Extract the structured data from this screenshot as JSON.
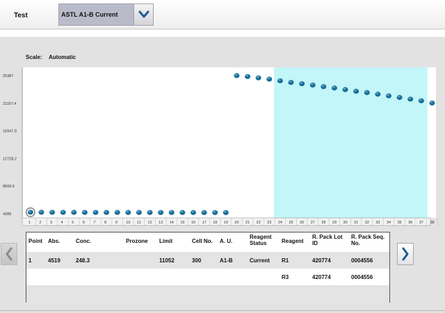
{
  "header": {
    "test_label": "Test",
    "test_select_value": "ASTL A1-B Current"
  },
  "scale": {
    "label": "Scale:",
    "value": "Automatic"
  },
  "chart_data": {
    "type": "scatter",
    "y_ticks": [
      "25387",
      "21167.4",
      "16947.8",
      "12728.2",
      "8508.6",
      "4289"
    ],
    "ylim": [
      4289,
      25387
    ],
    "x_ticks": [
      "1",
      "2",
      "3",
      "4",
      "5",
      "6",
      "7",
      "8",
      "9",
      "10",
      "11",
      "12",
      "13",
      "14",
      "15",
      "16",
      "17",
      "18",
      "19",
      "20",
      "21",
      "22",
      "23",
      "24",
      "25",
      "26",
      "27",
      "28",
      "29",
      "30",
      "31",
      "32",
      "33",
      "34",
      "35",
      "36",
      "37",
      "38"
    ],
    "points": [
      {
        "x": 1,
        "y": 4519
      },
      {
        "x": 2,
        "y": 4515
      },
      {
        "x": 3,
        "y": 4510
      },
      {
        "x": 4,
        "y": 4505
      },
      {
        "x": 5,
        "y": 4500
      },
      {
        "x": 6,
        "y": 4495
      },
      {
        "x": 7,
        "y": 4495
      },
      {
        "x": 8,
        "y": 4490
      },
      {
        "x": 9,
        "y": 4490
      },
      {
        "x": 10,
        "y": 4485
      },
      {
        "x": 11,
        "y": 4485
      },
      {
        "x": 12,
        "y": 4480
      },
      {
        "x": 13,
        "y": 4480
      },
      {
        "x": 14,
        "y": 4480
      },
      {
        "x": 15,
        "y": 4475
      },
      {
        "x": 16,
        "y": 4475
      },
      {
        "x": 17,
        "y": 4470
      },
      {
        "x": 18,
        "y": 4470
      },
      {
        "x": 19,
        "y": 4465
      },
      {
        "x": 20,
        "y": 25387
      },
      {
        "x": 21,
        "y": 25250
      },
      {
        "x": 22,
        "y": 25050
      },
      {
        "x": 23,
        "y": 24850
      },
      {
        "x": 24,
        "y": 24600
      },
      {
        "x": 25,
        "y": 24350
      },
      {
        "x": 26,
        "y": 24150
      },
      {
        "x": 27,
        "y": 23950
      },
      {
        "x": 28,
        "y": 23700
      },
      {
        "x": 29,
        "y": 23500
      },
      {
        "x": 30,
        "y": 23250
      },
      {
        "x": 31,
        "y": 23000
      },
      {
        "x": 32,
        "y": 22800
      },
      {
        "x": 33,
        "y": 22550
      },
      {
        "x": 34,
        "y": 22300
      },
      {
        "x": 35,
        "y": 22050
      },
      {
        "x": 36,
        "y": 21800
      },
      {
        "x": 37,
        "y": 21550
      },
      {
        "x": 38,
        "y": 21200
      }
    ],
    "highlight_range": [
      24,
      37
    ],
    "highlight_color": "#c2f6f8",
    "point_color": "#1a6f98",
    "selected_point": 1,
    "grid": false
  },
  "table": {
    "headers": [
      "Point",
      "Abs.",
      "Conc.",
      "Prozone",
      "Limit",
      "Cell No.",
      "A. U.",
      "Reagent Status",
      "Reagent",
      "R. Pack Lot ID",
      "R. Pack Seq. No."
    ],
    "header_lines": [
      [
        "Point"
      ],
      [
        "Abs."
      ],
      [
        "Conc."
      ],
      [
        "Prozone"
      ],
      [
        "Limit"
      ],
      [
        "Cell No."
      ],
      [
        "A. U."
      ],
      [
        "Reagent",
        "Status"
      ],
      [
        "Reagent"
      ],
      [
        "R. Pack Lot",
        "ID"
      ],
      [
        "R. Pack Seq.",
        "No."
      ]
    ],
    "rows": [
      [
        "1",
        "4519",
        "248.3",
        "",
        "11052",
        "300",
        "A1-B",
        "Current",
        "R1",
        "420774",
        "0004556"
      ],
      [
        "",
        "",
        "",
        "",
        "",
        "",
        "",
        "",
        "R3",
        "420774",
        "0004556"
      ],
      [
        "",
        "",
        "",
        "",
        "",
        "",
        "",
        "",
        "",
        "",
        ""
      ]
    ]
  },
  "icons": {
    "dropdown": "chevron-down-icon",
    "prev": "chevron-left-icon",
    "next": "chevron-right-icon"
  },
  "colors": {
    "chevron": "#1a5a96",
    "select_bg": "#b9bbc9"
  }
}
